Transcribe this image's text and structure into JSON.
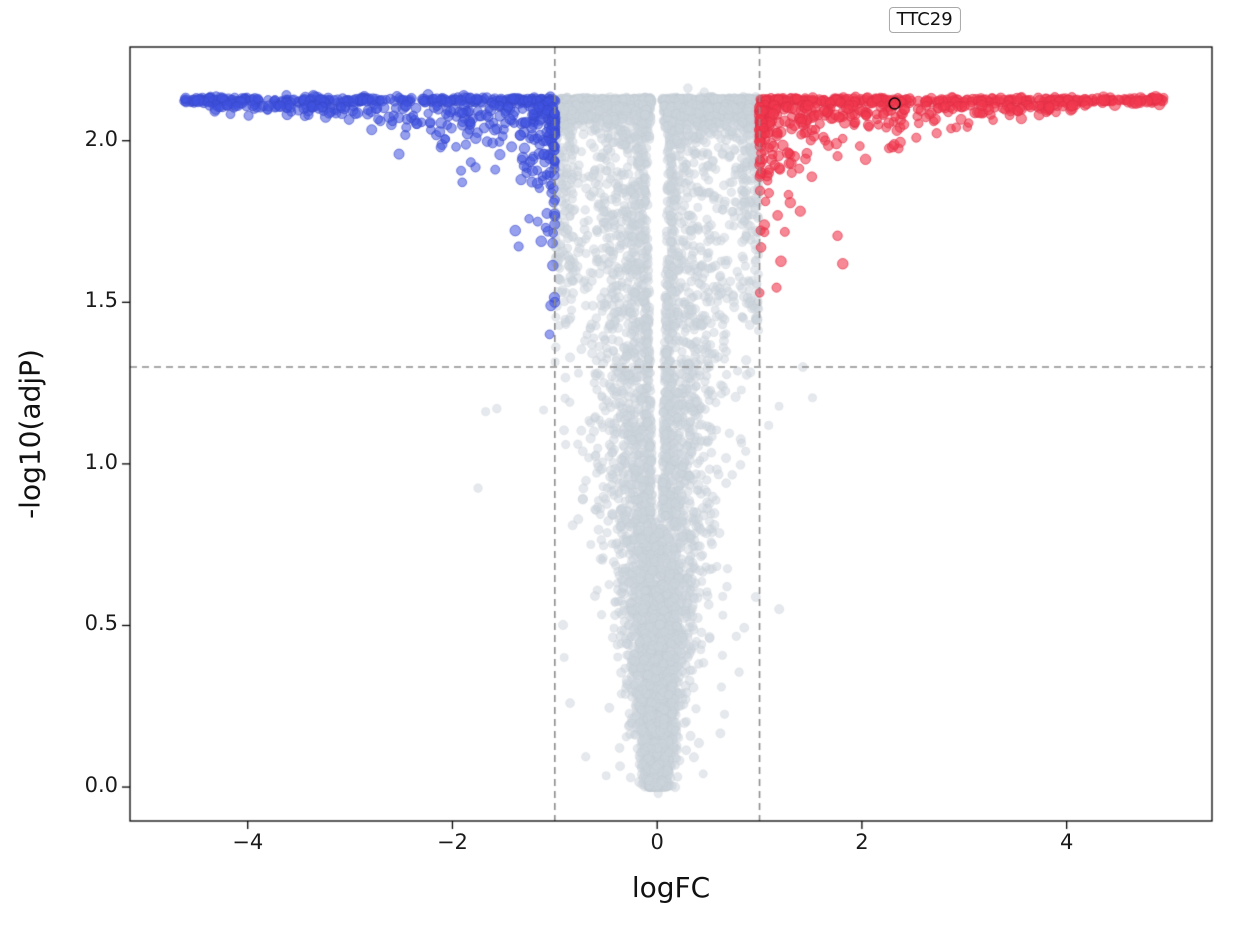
{
  "page": {
    "background": "#ffffff"
  },
  "chart_data": {
    "type": "scatter",
    "chart_kind": "volcano-plot",
    "title": "",
    "xlabel": "logFC",
    "ylabel": "-log10(adjP)",
    "xlim": [
      -5.15,
      5.42
    ],
    "ylim": [
      -0.105,
      2.29
    ],
    "x_ticks": [
      -4,
      -2,
      0,
      2,
      4
    ],
    "x_tick_labels": [
      "−4",
      "−2",
      "0",
      "2",
      "4"
    ],
    "y_ticks": [
      0,
      0.5,
      1,
      1.5,
      2
    ],
    "y_tick_labels": [
      "0.0",
      "0.5",
      "1.0",
      "1.5",
      "2.0"
    ],
    "grid": false,
    "legend": null,
    "threshold_lines": {
      "vertical_x": [
        -1,
        1
      ],
      "horizontal_y": 1.3,
      "style": "dashed",
      "color": "#8c8c8c"
    },
    "significance_cap_y": 2.125,
    "annotation": {
      "label": "TTC29",
      "x": 2.32,
      "y": 2.115,
      "marker": "open-circle"
    },
    "series": [
      {
        "name": "upregulated",
        "color": "#f2384f",
        "edge_color": "#e02e46",
        "approx_count": 630,
        "x_range": [
          1.0,
          4.95
        ],
        "y_range": [
          1.48,
          2.13
        ]
      },
      {
        "name": "downregulated",
        "color": "#4052e0",
        "edge_color": "#3848c8",
        "approx_count": 620,
        "x_range": [
          -4.62,
          -1.0
        ],
        "y_range": [
          1.35,
          2.13
        ]
      },
      {
        "name": "not_significant",
        "color": "#ccd4db",
        "edge_color": "#bfc8d0",
        "approx_count": 7000,
        "x_range": [
          -1.75,
          1.75
        ],
        "y_range": [
          -0.02,
          2.17
        ]
      }
    ]
  }
}
